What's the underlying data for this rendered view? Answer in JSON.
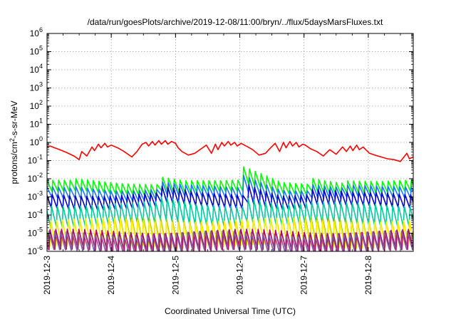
{
  "chart_data": {
    "type": "line",
    "title": "/data/run/goesPlots/archive/2019-12-08/11:00/bryn/../flux/5daysMarsFluxes.txt",
    "xlabel": "Coordinated Universal Time (UTC)",
    "ylabel": {
      "main": "protons/cm",
      "sup": "2",
      "tail": "-s-sr-MeV"
    },
    "xlim": [
      0,
      5.7
    ],
    "xticks": [
      {
        "value": 0,
        "label": "2019-12-3"
      },
      {
        "value": 1,
        "label": "2019-12-4"
      },
      {
        "value": 2,
        "label": "2019-12-5"
      },
      {
        "value": 3,
        "label": "2019-12-6"
      },
      {
        "value": 4,
        "label": "2019-12-7"
      },
      {
        "value": 5,
        "label": "2019-12-8"
      }
    ],
    "x_units": "days since 2019-12-3",
    "ylim_log10": [
      -6,
      6
    ],
    "yscale": "log",
    "yticks": [
      {
        "base": "10",
        "exp": "-6",
        "value": -6
      },
      {
        "base": "10",
        "exp": "-5",
        "value": -5
      },
      {
        "base": "10",
        "exp": "-4",
        "value": -4
      },
      {
        "base": "10",
        "exp": "-3",
        "value": -3
      },
      {
        "base": "10",
        "exp": "-2",
        "value": -2
      },
      {
        "base": "10",
        "exp": "-1",
        "value": -1
      },
      {
        "base": "10",
        "exp": "0",
        "value": 0
      },
      {
        "base": "10",
        "exp": "1",
        "value": 1
      },
      {
        "base": "10",
        "exp": "2",
        "value": 2
      },
      {
        "base": "10",
        "exp": "3",
        "value": 3
      },
      {
        "base": "10",
        "exp": "4",
        "value": 4
      },
      {
        "base": "10",
        "exp": "5",
        "value": 5
      },
      {
        "base": "10",
        "exp": "6",
        "value": 6
      }
    ],
    "grid": true,
    "series": [
      {
        "color": "#ff0000",
        "x": [
          0,
          0.05,
          0.12,
          0.2,
          0.3,
          0.42,
          0.5,
          0.54,
          0.62,
          0.7,
          0.74,
          0.8,
          0.84,
          0.9,
          0.94,
          1.0,
          1.1,
          1.2,
          1.32,
          1.4,
          1.48,
          1.54,
          1.58,
          1.64,
          1.68,
          1.74,
          1.78,
          1.84,
          1.88,
          1.94,
          2.0,
          2.04,
          2.1,
          2.2,
          2.3,
          2.4,
          2.48,
          2.56,
          2.62,
          2.66,
          2.72,
          2.76,
          2.82,
          2.86,
          2.92,
          2.96,
          3.02,
          3.1,
          3.2,
          3.3,
          3.4,
          3.48,
          3.55,
          3.62,
          3.68,
          3.72,
          3.78,
          3.82,
          3.88,
          3.92,
          3.98,
          4.02,
          4.1,
          4.2,
          4.3,
          4.4,
          4.5,
          4.6,
          4.66,
          4.72,
          4.76,
          4.82,
          4.86,
          4.92,
          4.96,
          5.02,
          5.1,
          5.2,
          5.3,
          5.4,
          5.5,
          5.6,
          5.64,
          5.7
        ],
        "y_log10": [
          -0.25,
          -0.2,
          -0.3,
          -0.4,
          -0.55,
          -0.75,
          -0.95,
          -0.5,
          -0.75,
          -0.25,
          -0.45,
          -0.1,
          -0.3,
          -0.05,
          -0.25,
          -0.15,
          -0.3,
          -0.5,
          -0.8,
          -0.5,
          -0.1,
          0.0,
          -0.2,
          0.05,
          -0.15,
          0.1,
          -0.1,
          0.1,
          -0.1,
          0.05,
          -0.05,
          -0.3,
          -0.5,
          -0.7,
          -0.6,
          -0.35,
          -0.15,
          -0.6,
          -0.1,
          -0.4,
          0.0,
          -0.2,
          0.05,
          -0.15,
          0.0,
          -0.2,
          -0.05,
          -0.2,
          -0.4,
          -0.7,
          -0.6,
          -0.3,
          -0.05,
          -0.5,
          0.0,
          -0.3,
          0.05,
          -0.2,
          0.0,
          -0.25,
          -0.1,
          -0.15,
          -0.35,
          -0.5,
          -0.75,
          -0.4,
          -0.65,
          -0.25,
          -0.5,
          -0.2,
          -0.45,
          -0.15,
          -0.4,
          -0.25,
          -0.4,
          -0.6,
          -0.7,
          -0.8,
          -0.9,
          -0.95,
          -1.05,
          -0.6,
          -0.9,
          -0.8
        ]
      },
      {
        "color": "#00ff00",
        "cycle": 0.09,
        "phase": 0,
        "hi": -2.2,
        "lo": -2.8,
        "spikes": [
          [
            0.42,
            0.1
          ],
          [
            1.72,
            0.45
          ],
          [
            2.08,
            0.15
          ],
          [
            3.05,
            0.75
          ],
          [
            4.1,
            0.35
          ],
          [
            4.6,
            0.2
          ]
        ]
      },
      {
        "color": "#1a78ff",
        "cycle": 0.09,
        "phase": 0,
        "hi": -2.55,
        "lo": -3.15,
        "spikes": [
          [
            0.42,
            0.1
          ],
          [
            1.72,
            0.45
          ],
          [
            2.08,
            0.15
          ],
          [
            3.05,
            0.7
          ],
          [
            4.1,
            0.35
          ],
          [
            4.6,
            0.2
          ]
        ]
      },
      {
        "color": "#0000cc",
        "cycle": 0.09,
        "phase": 0.01,
        "hi": -2.85,
        "lo": -3.6,
        "spikes": [
          [
            1.72,
            0.4
          ],
          [
            3.05,
            0.7
          ],
          [
            4.1,
            0.3
          ]
        ]
      },
      {
        "color": "#00c8a0",
        "cycle": 0.09,
        "phase": 0.02,
        "hi": -3.4,
        "lo": -4.55,
        "spikes": [
          [
            1.72,
            0.3
          ],
          [
            3.05,
            0.5
          ]
        ]
      },
      {
        "color": "#99c800",
        "cycle": 0.09,
        "phase": 0.03,
        "hi": -4.25,
        "lo": -5.6,
        "spikes": []
      },
      {
        "color": "#ffee00",
        "cycle": 0.09,
        "phase": 0.03,
        "hi": -4.3,
        "lo": -5.7,
        "spikes": []
      },
      {
        "color": "#b00060",
        "cycle": 0.09,
        "phase": 0.045,
        "hi": -4.9,
        "lo": -6.0,
        "spikes": []
      },
      {
        "color": "#8a5a9a",
        "cycle": 0.09,
        "phase": 0.06,
        "hi": -5.0,
        "lo": -6.0,
        "spikes": []
      }
    ]
  }
}
